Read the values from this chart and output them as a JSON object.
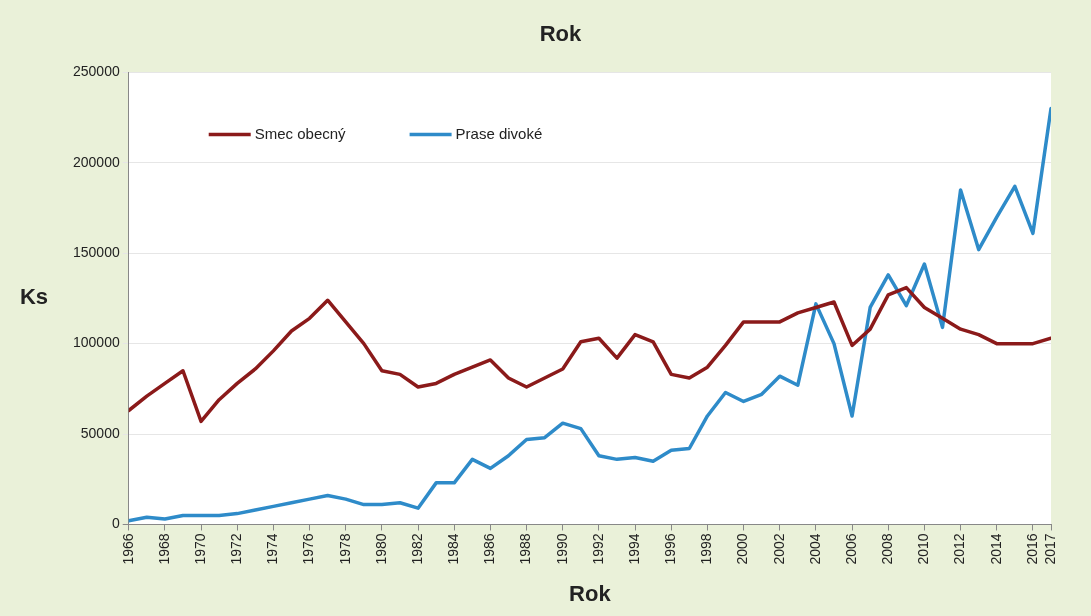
{
  "chart_data": {
    "type": "line",
    "title": "Rok",
    "xlabel": "Rok",
    "ylabel": "Ks",
    "x": [
      1966,
      1967,
      1968,
      1969,
      1970,
      1971,
      1972,
      1973,
      1974,
      1975,
      1976,
      1977,
      1978,
      1979,
      1980,
      1981,
      1982,
      1983,
      1984,
      1985,
      1986,
      1987,
      1988,
      1989,
      1990,
      1991,
      1992,
      1993,
      1994,
      1995,
      1996,
      1997,
      1998,
      1999,
      2000,
      2001,
      2002,
      2003,
      2004,
      2005,
      2006,
      2007,
      2008,
      2009,
      2010,
      2011,
      2012,
      2013,
      2014,
      2015,
      2016,
      2017
    ],
    "series": [
      {
        "name": "Smec obecný",
        "color": "#8b1a1a",
        "values": [
          63000,
          71000,
          78000,
          85000,
          57000,
          69000,
          78000,
          86000,
          96000,
          107000,
          114000,
          124000,
          112000,
          100000,
          85000,
          83000,
          76000,
          78000,
          83000,
          87000,
          91000,
          81000,
          76000,
          81000,
          86000,
          101000,
          103000,
          92000,
          105000,
          101000,
          83000,
          81000,
          87000,
          99000,
          112000,
          112000,
          112000,
          117000,
          120000,
          123000,
          99000,
          108000,
          127000,
          131000,
          120000,
          114000,
          108000,
          105000,
          100000,
          100000,
          100000,
          103000
        ]
      },
      {
        "name": "Prase divoké",
        "color": "#2e8bc9",
        "values": [
          2000,
          4000,
          3000,
          5000,
          5000,
          5000,
          6000,
          8000,
          10000,
          12000,
          14000,
          16000,
          14000,
          11000,
          11000,
          12000,
          9000,
          23000,
          23000,
          36000,
          31000,
          38000,
          47000,
          48000,
          56000,
          53000,
          38000,
          36000,
          37000,
          35000,
          41000,
          42000,
          60000,
          73000,
          68000,
          72000,
          82000,
          77000,
          122000,
          100000,
          60000,
          120000,
          138000,
          121000,
          144000,
          109000,
          185000,
          152000,
          170000,
          187000,
          161000,
          230000
        ]
      }
    ],
    "xlim": [
      1966,
      2017
    ],
    "xticks": [
      1966,
      1968,
      1970,
      1972,
      1974,
      1976,
      1978,
      1980,
      1982,
      1984,
      1986,
      1988,
      1990,
      1992,
      1994,
      1996,
      1998,
      2000,
      2002,
      2004,
      2006,
      2008,
      2010,
      2012,
      2014,
      2016,
      2017
    ],
    "ylim": [
      0,
      250000
    ],
    "yticks": [
      0,
      50000,
      100000,
      150000,
      200000,
      250000
    ],
    "grid": "y",
    "legend": "top left",
    "marker": "none",
    "line_style": "solid"
  }
}
